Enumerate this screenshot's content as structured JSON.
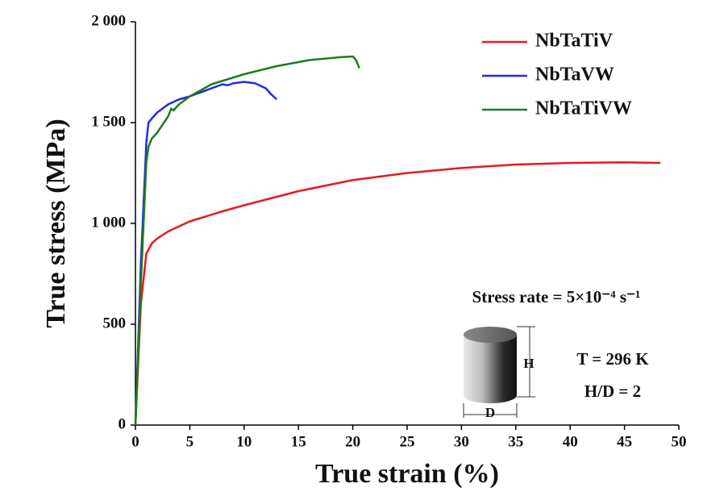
{
  "chart_data": {
    "type": "line",
    "xlabel": "True strain (%)",
    "ylabel": "True stress (MPa)",
    "xlim": [
      0,
      50
    ],
    "xticks": [
      0,
      5,
      10,
      15,
      20,
      25,
      30,
      35,
      40,
      45,
      50
    ],
    "ylim": [
      0,
      2000
    ],
    "yticks": [
      0,
      500,
      {
        "value": 1000,
        "label": "1 000"
      },
      {
        "value": 1500,
        "label": "1 500"
      },
      {
        "value": 2000,
        "label": "2 000"
      }
    ],
    "legend": "top-right",
    "series": [
      {
        "name": "NbTaTiV",
        "color": "#e8191c",
        "x": [
          0,
          0.5,
          1,
          1.5,
          2,
          3,
          5,
          8,
          10,
          15,
          20,
          25,
          30,
          35,
          40,
          45,
          48.3
        ],
        "values": [
          0,
          600,
          850,
          900,
          925,
          960,
          1010,
          1060,
          1090,
          1160,
          1215,
          1250,
          1275,
          1292,
          1300,
          1303,
          1300
        ]
      },
      {
        "name": "NbTaVW",
        "color": "#1a2fe0",
        "x": [
          0,
          0.5,
          1,
          1.2,
          1.5,
          2,
          3,
          4,
          5,
          6,
          7,
          8,
          8.5,
          9,
          10,
          11,
          12,
          12.5,
          13
        ],
        "values": [
          0,
          800,
          1400,
          1500,
          1520,
          1550,
          1590,
          1615,
          1630,
          1650,
          1670,
          1690,
          1685,
          1695,
          1702,
          1695,
          1670,
          1640,
          1615
        ]
      },
      {
        "name": "NbTaTiVW",
        "color": "#1e7d1e",
        "x": [
          0,
          0.5,
          1,
          1.2,
          1.5,
          2,
          2.5,
          3,
          3.3,
          3.5,
          4,
          5,
          7,
          10,
          13,
          16,
          19,
          20,
          20.3,
          20.6
        ],
        "values": [
          0,
          700,
          1300,
          1380,
          1420,
          1450,
          1490,
          1530,
          1570,
          1560,
          1590,
          1630,
          1690,
          1740,
          1780,
          1810,
          1825,
          1828,
          1810,
          1770
        ]
      }
    ],
    "annotations": [
      "Stress rate = 5×10⁻⁴ s⁻¹",
      "T = 296 K",
      "H/D = 2",
      "H",
      "D"
    ]
  }
}
